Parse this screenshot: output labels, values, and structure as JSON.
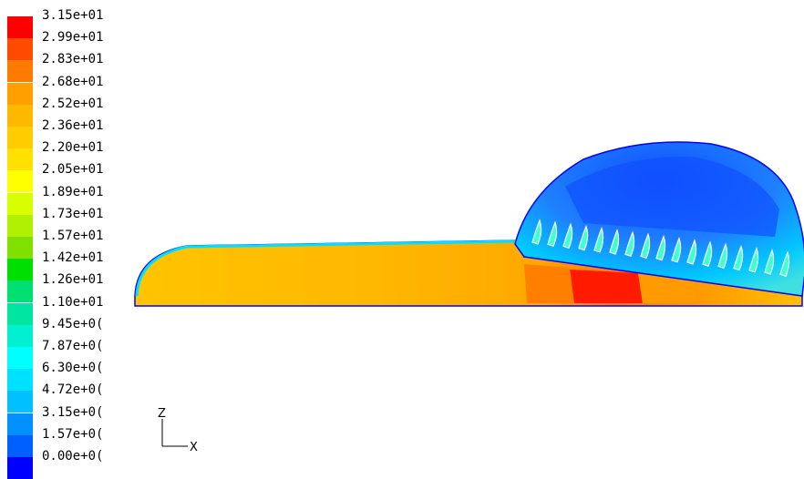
{
  "colorbar": {
    "labels": [
      "3.15e+01",
      "2.99e+01",
      "2.83e+01",
      "2.68e+01",
      "2.52e+01",
      "2.36e+01",
      "2.20e+01",
      "2.05e+01",
      "1.89e+01",
      "1.73e+01",
      "1.57e+01",
      "1.42e+01",
      "1.26e+01",
      "1.10e+01",
      "9.45e+0(",
      "7.87e+0(",
      "6.30e+0(",
      "4.72e+0(",
      "3.15e+0(",
      "1.57e+0(",
      "0.00e+0("
    ],
    "colors": [
      "#ff0000",
      "#ff4a00",
      "#ff7a00",
      "#ffa000",
      "#ffb800",
      "#ffcc00",
      "#ffe000",
      "#ffff00",
      "#d8ff00",
      "#b0f000",
      "#80e000",
      "#00e000",
      "#00e070",
      "#00e6a0",
      "#00f0d0",
      "#00ffff",
      "#00e0ff",
      "#00c0ff",
      "#0090ff",
      "#0060ff",
      "#0000ff"
    ]
  },
  "axes": {
    "z_label": "Z",
    "x_label": "X"
  }
}
